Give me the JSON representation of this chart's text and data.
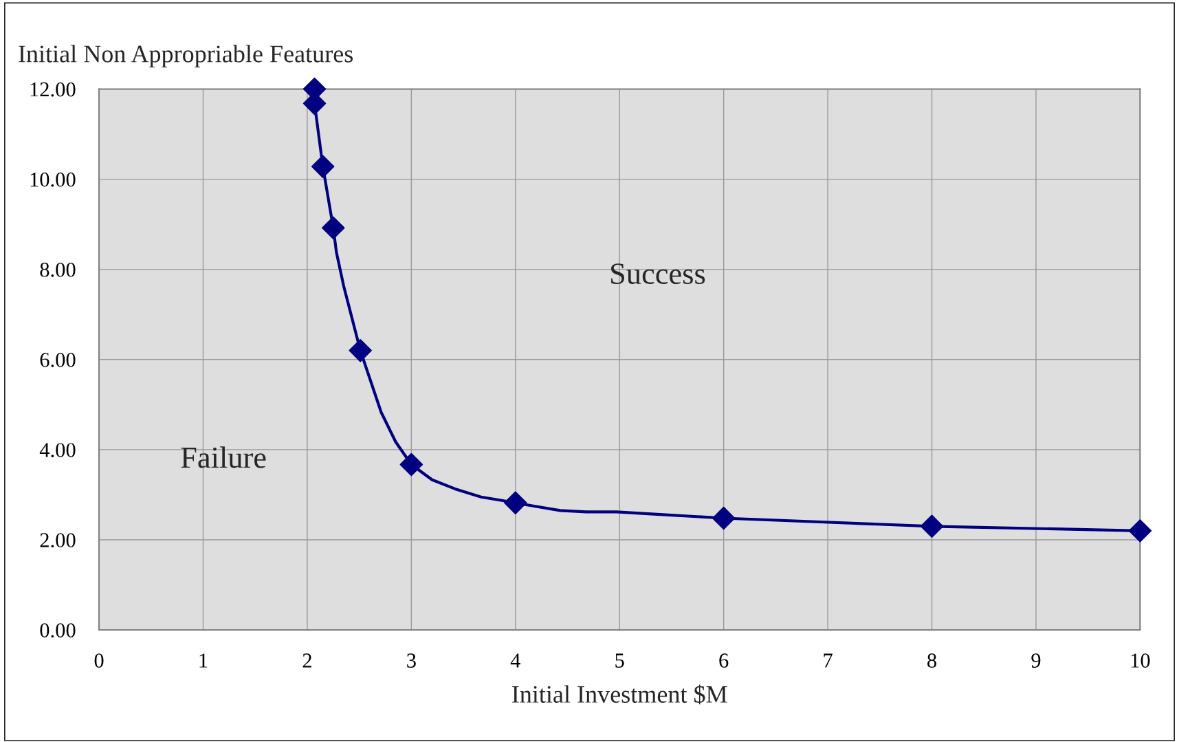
{
  "chart_data": {
    "type": "line",
    "ylabel": "Initial Non Appropriable Features",
    "xlabel": "Initial Investment $M",
    "series": [
      {
        "color": "#000080",
        "marker": "none",
        "x": [
          2.07,
          2.07,
          2.15,
          2.25,
          2.28,
          2.35,
          2.51,
          2.71,
          2.85,
          3.0,
          3.2,
          3.42,
          3.67,
          3.85,
          4.0,
          4.17,
          4.43,
          4.68,
          4.97,
          5.47,
          6.0,
          8.0,
          10.0
        ],
        "values": [
          12.0,
          11.68,
          10.28,
          8.92,
          8.38,
          7.63,
          6.2,
          4.83,
          4.17,
          3.67,
          3.33,
          3.13,
          2.95,
          2.88,
          2.82,
          2.75,
          2.65,
          2.62,
          2.62,
          2.55,
          2.48,
          2.3,
          2.2
        ]
      },
      {
        "type": "scatter",
        "color": "#000080",
        "marker": "diamond",
        "x": [
          2.07,
          2.07,
          2.15,
          2.25,
          2.51,
          3.0,
          4.0,
          6.0,
          8.0,
          10.0
        ],
        "values": [
          12.0,
          11.68,
          10.28,
          8.92,
          6.2,
          3.67,
          2.82,
          2.48,
          2.3,
          2.2
        ]
      }
    ],
    "xlim": [
      0,
      10
    ],
    "xticks": [
      0,
      1,
      2,
      3,
      4,
      5,
      6,
      7,
      8,
      9,
      10
    ],
    "ylim": [
      0,
      12
    ],
    "yticks": [
      {
        "value": 0,
        "label": "0.00"
      },
      {
        "value": 2,
        "label": "2.00"
      },
      {
        "value": 4,
        "label": "4.00"
      },
      {
        "value": 6,
        "label": "6.00"
      },
      {
        "value": 8,
        "label": "8.00"
      },
      {
        "value": 10,
        "label": "10.00"
      },
      {
        "value": 12,
        "label": "12.00"
      }
    ],
    "grid": true,
    "legend": false,
    "annotations": [
      "Success",
      "Failure"
    ]
  }
}
